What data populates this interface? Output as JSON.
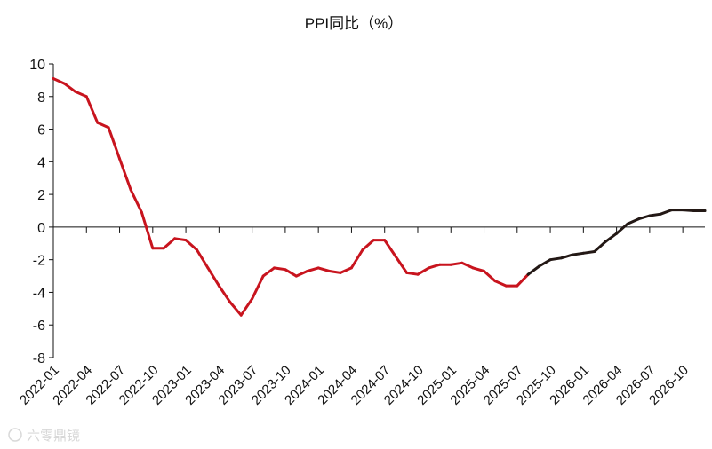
{
  "chart_data": {
    "type": "line",
    "title": "PPI同比（%）",
    "xlabel": "",
    "ylabel": "",
    "ylim": [
      -8,
      10
    ],
    "yticks": [
      10,
      8,
      6,
      4,
      2,
      0,
      -2,
      -4,
      -6,
      -8
    ],
    "x_tick_labels": [
      "2022-01",
      "2022-04",
      "2022-07",
      "2022-10",
      "2023-01",
      "2023-04",
      "2023-07",
      "2023-10",
      "2024-01",
      "2024-04",
      "2024-07",
      "2024-10",
      "2025-01",
      "2025-04",
      "2025-07",
      "2025-10",
      "2026-01",
      "2026-04",
      "2026-07",
      "2026-10"
    ],
    "grid": false,
    "legend": "none",
    "series": [
      {
        "color": "#c8141e",
        "points": [
          [
            "2022-01",
            9.1
          ],
          [
            "2022-02",
            8.8
          ],
          [
            "2022-03",
            8.3
          ],
          [
            "2022-04",
            8.0
          ],
          [
            "2022-05",
            6.4
          ],
          [
            "2022-06",
            6.1
          ],
          [
            "2022-07",
            4.2
          ],
          [
            "2022-08",
            2.3
          ],
          [
            "2022-09",
            0.9
          ],
          [
            "2022-10",
            -1.3
          ],
          [
            "2022-11",
            -1.3
          ],
          [
            "2022-12",
            -0.7
          ],
          [
            "2023-01",
            -0.8
          ],
          [
            "2023-02",
            -1.4
          ],
          [
            "2023-03",
            -2.5
          ],
          [
            "2023-04",
            -3.6
          ],
          [
            "2023-05",
            -4.6
          ],
          [
            "2023-06",
            -5.4
          ],
          [
            "2023-07",
            -4.4
          ],
          [
            "2023-08",
            -3.0
          ],
          [
            "2023-09",
            -2.5
          ],
          [
            "2023-10",
            -2.6
          ],
          [
            "2023-11",
            -3.0
          ],
          [
            "2023-12",
            -2.7
          ],
          [
            "2024-01",
            -2.5
          ],
          [
            "2024-02",
            -2.7
          ],
          [
            "2024-03",
            -2.8
          ],
          [
            "2024-04",
            -2.5
          ],
          [
            "2024-05",
            -1.4
          ],
          [
            "2024-06",
            -0.8
          ],
          [
            "2024-07",
            -0.8
          ],
          [
            "2024-08",
            -1.8
          ],
          [
            "2024-09",
            -2.8
          ],
          [
            "2024-10",
            -2.9
          ],
          [
            "2024-11",
            -2.5
          ],
          [
            "2024-12",
            -2.3
          ],
          [
            "2025-01",
            -2.3
          ],
          [
            "2025-02",
            -2.2
          ],
          [
            "2025-03",
            -2.5
          ],
          [
            "2025-04",
            -2.7
          ],
          [
            "2025-05",
            -3.3
          ],
          [
            "2025-06",
            -3.6
          ],
          [
            "2025-07",
            -3.6
          ],
          [
            "2025-08",
            -2.9
          ]
        ]
      },
      {
        "color": "#231815",
        "points": [
          [
            "2025-08",
            -2.9
          ],
          [
            "2025-09",
            -2.4
          ],
          [
            "2025-10",
            -2.0
          ],
          [
            "2025-11",
            -1.9
          ],
          [
            "2025-12",
            -1.7
          ],
          [
            "2026-01",
            -1.6
          ],
          [
            "2026-02",
            -1.5
          ],
          [
            "2026-03",
            -0.9
          ],
          [
            "2026-04",
            -0.4
          ],
          [
            "2026-05",
            0.2
          ],
          [
            "2026-06",
            0.5
          ],
          [
            "2026-07",
            0.7
          ],
          [
            "2026-08",
            0.8
          ],
          [
            "2026-09",
            1.05
          ],
          [
            "2026-10",
            1.05
          ],
          [
            "2026-11",
            1.0
          ],
          [
            "2026-12",
            1.0
          ]
        ]
      }
    ]
  },
  "watermark": {
    "text": "六零鼎镜",
    "icon": "swirl-logo-icon"
  }
}
